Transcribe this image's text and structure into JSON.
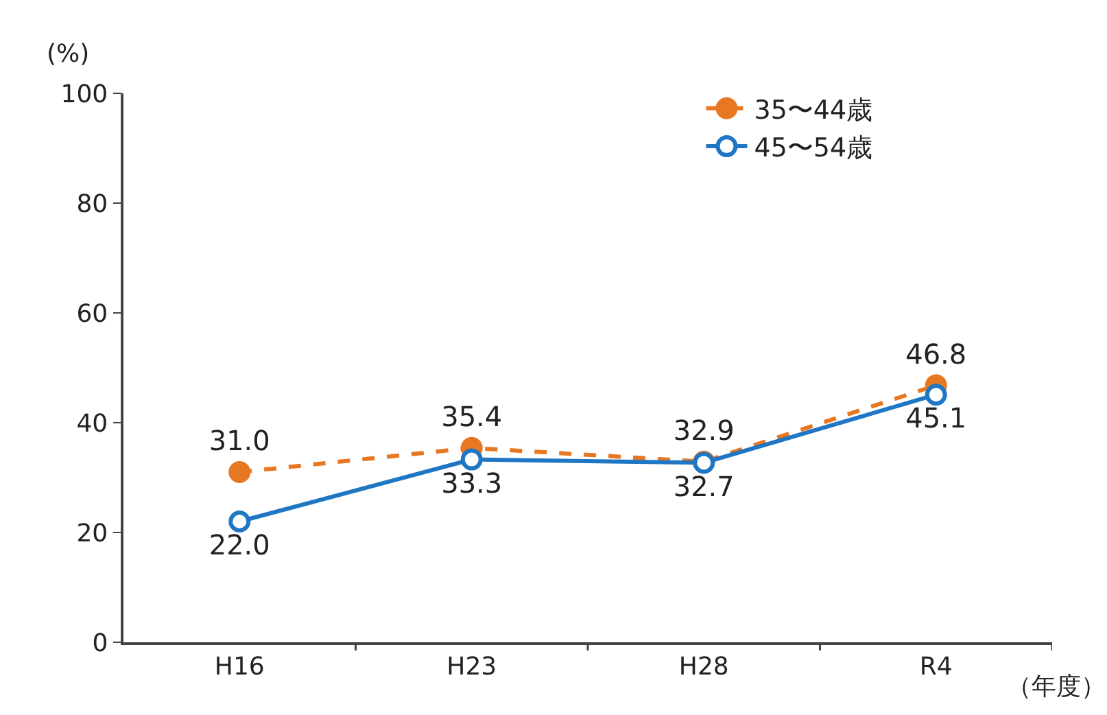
{
  "chart_data": {
    "type": "line",
    "ylabel": "(%)",
    "xlabel": "（年度）",
    "categories": [
      "H16",
      "H23",
      "H28",
      "R4"
    ],
    "series": [
      {
        "name": "35〜44歳",
        "color": "#e87722",
        "values": [
          31.0,
          35.4,
          32.9,
          46.8
        ],
        "value_labels": [
          "31.0",
          "35.4",
          "32.9",
          "46.8"
        ],
        "line_style": "dashed"
      },
      {
        "name": "45〜54歳",
        "color": "#1f77c4",
        "values": [
          22.0,
          33.3,
          32.7,
          45.1
        ],
        "value_labels": [
          "22.0",
          "33.3",
          "32.7",
          "45.1"
        ],
        "line_style": "solid"
      }
    ],
    "ylim": [
      0,
      100
    ],
    "yticks": [
      0,
      20,
      40,
      60,
      80,
      100
    ],
    "legend": "top right",
    "marker": "circle"
  }
}
